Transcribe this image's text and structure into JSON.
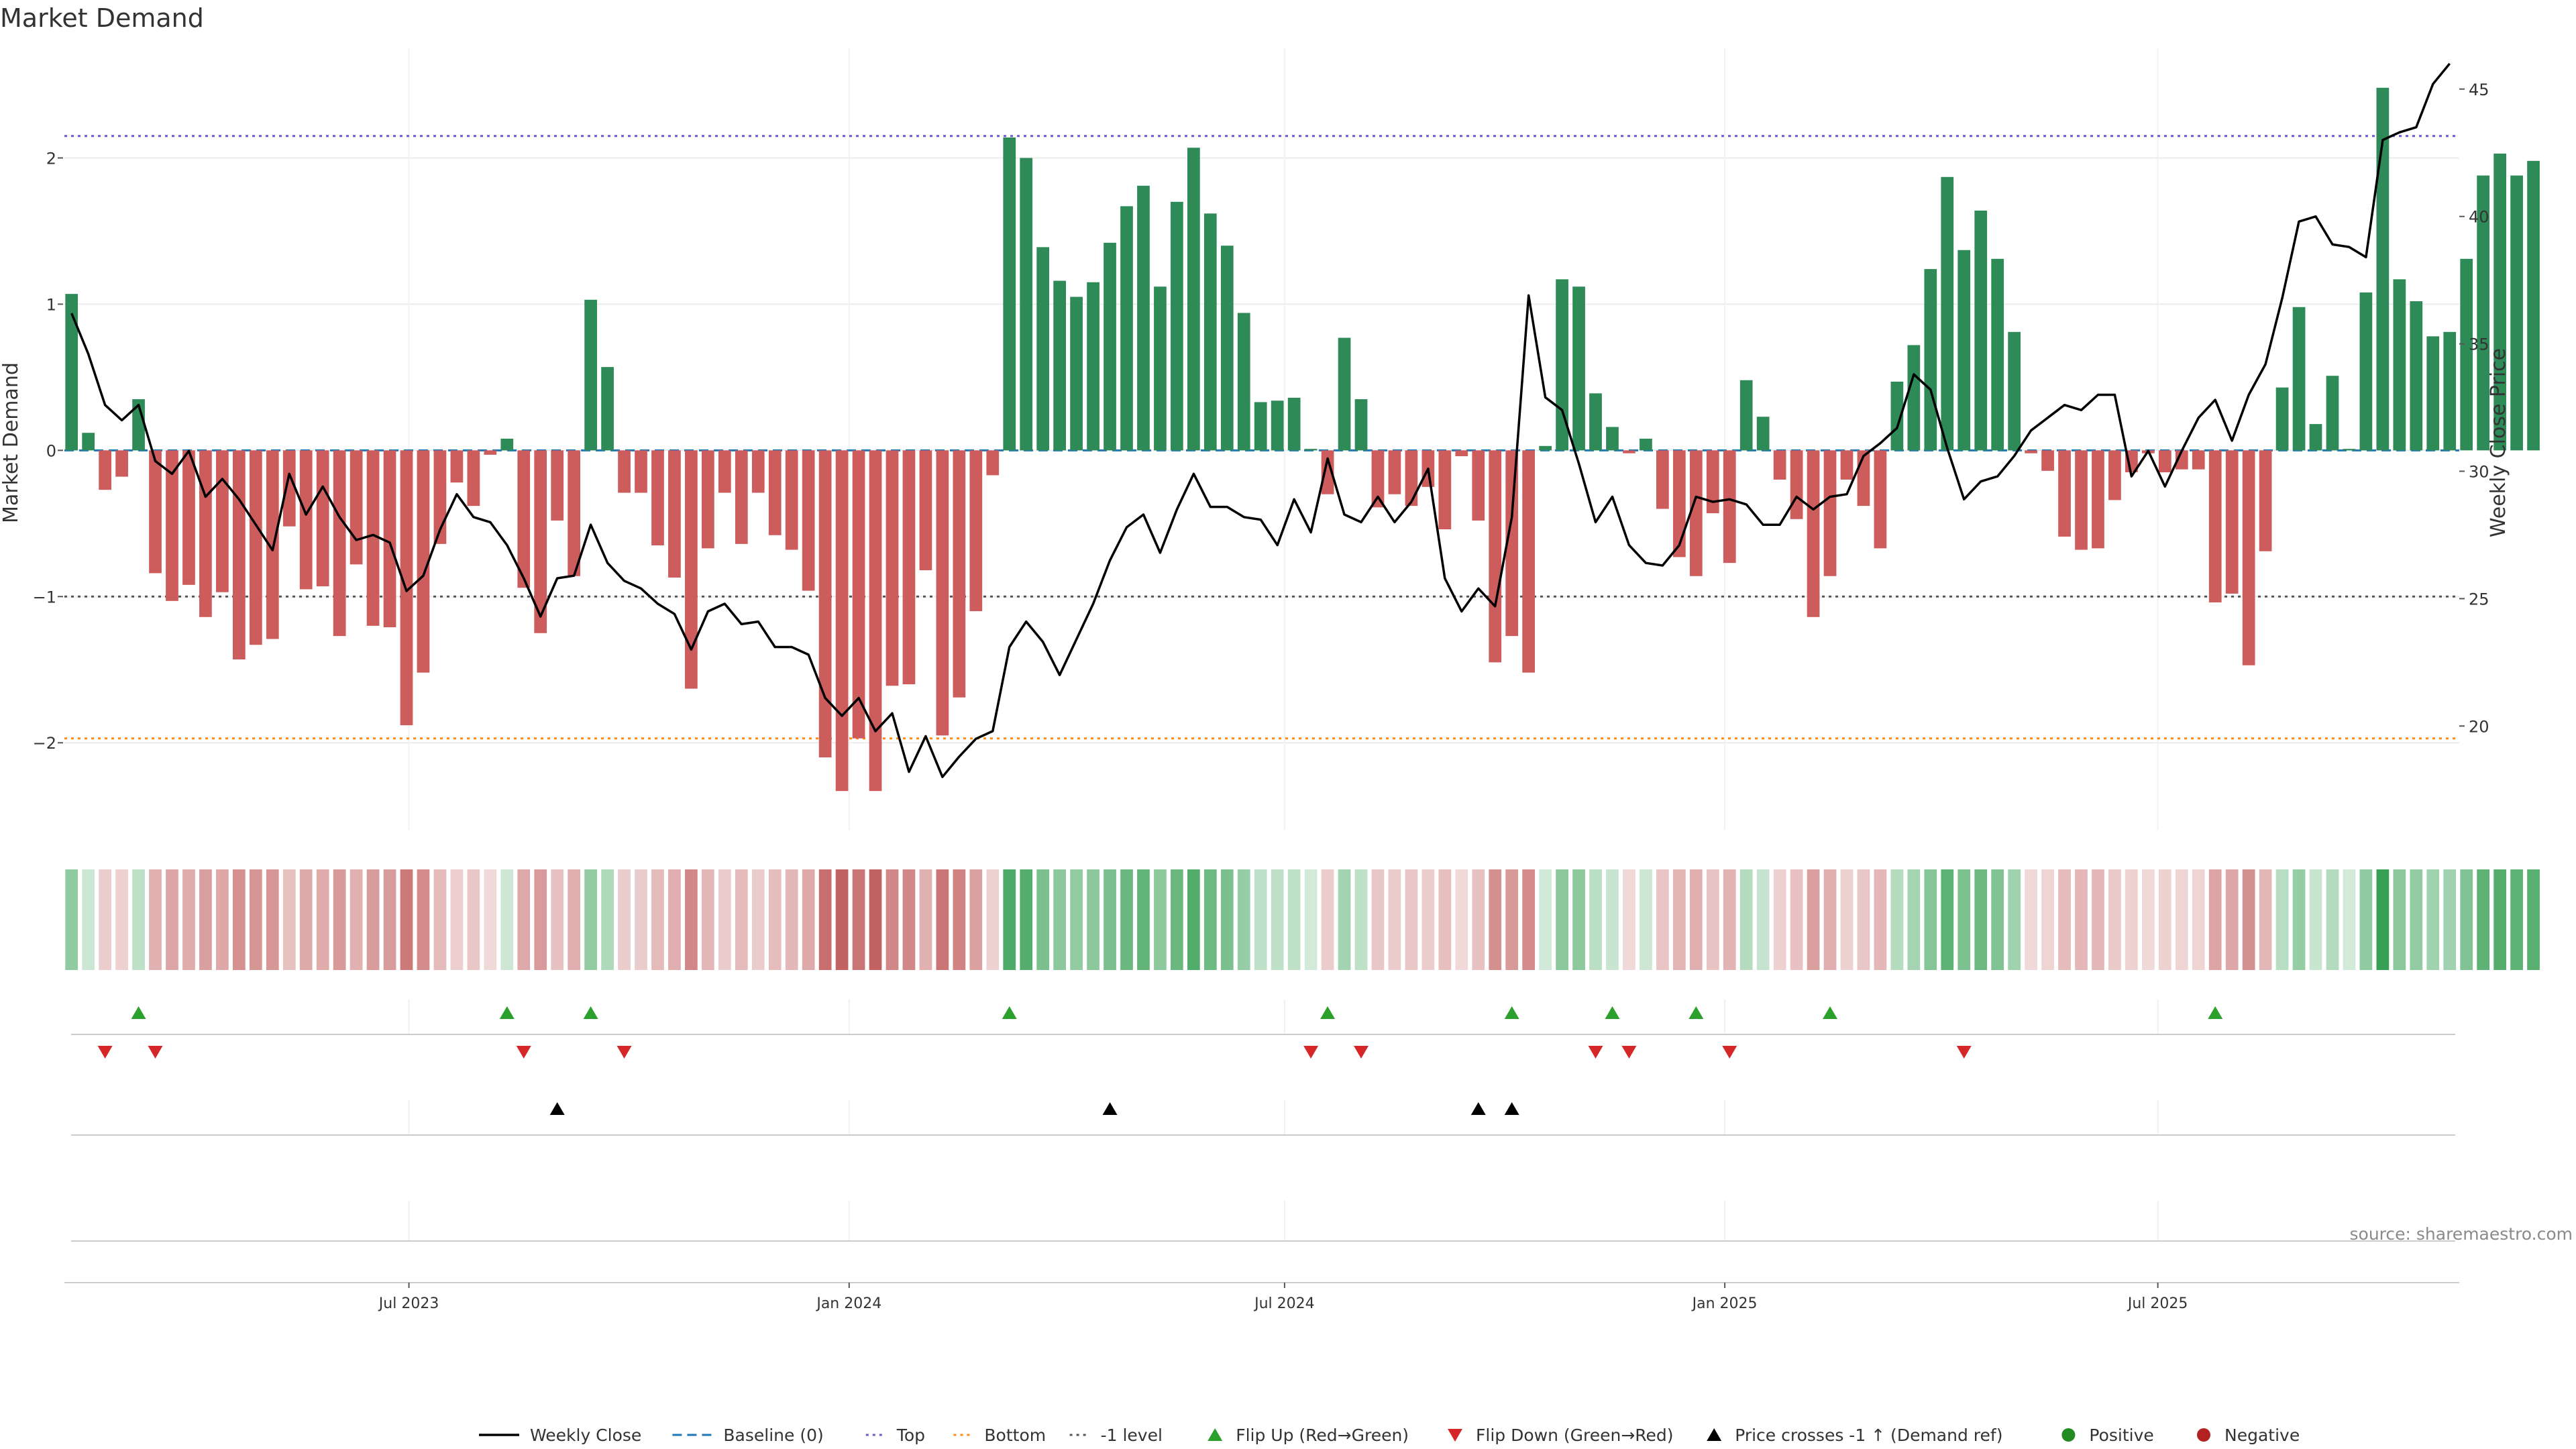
{
  "chart_data": {
    "type": "bar",
    "title": "Market Demand",
    "ylabel": "Market Demand",
    "y2label": "Weekly Close Price",
    "ylim": [
      -2.6,
      2.75
    ],
    "y2lim": [
      15.9,
      46.6
    ],
    "yticks": [
      {
        "v": 2,
        "t": "2"
      },
      {
        "v": 1,
        "t": "1"
      },
      {
        "v": 0,
        "t": "0"
      },
      {
        "v": -1,
        "t": "−1"
      },
      {
        "v": -2,
        "t": "−2"
      }
    ],
    "y2ticks": [
      {
        "v": 45,
        "t": "45"
      },
      {
        "v": 40,
        "t": "40"
      },
      {
        "v": 35,
        "t": "35"
      },
      {
        "v": 30,
        "t": "30"
      },
      {
        "v": 25,
        "t": "25"
      },
      {
        "v": 20,
        "t": "20"
      }
    ],
    "x_start": "2023-02-10",
    "x_step_days": 7,
    "xlim": [
      "2023-02-07",
      "2025-11-04"
    ],
    "xticks": [
      {
        "date": "2023-07-01",
        "label": "Jul 2023"
      },
      {
        "date": "2024-01-01",
        "label": "Jan 2024"
      },
      {
        "date": "2024-07-01",
        "label": "Jul 2024"
      },
      {
        "date": "2025-01-01",
        "label": "Jan 2025"
      },
      {
        "date": "2025-07-01",
        "label": "Jul 2025"
      }
    ],
    "reference_lines": [
      {
        "name": "Top",
        "value": 2.15,
        "color": "#6a5acd",
        "style": "dotted"
      },
      {
        "name": "Bottom",
        "value": -1.97,
        "color": "#ff8c1a",
        "style": "dotted"
      },
      {
        "name": "-1 level",
        "value": -1.0,
        "color": "#555555",
        "style": "dotted"
      },
      {
        "name": "Baseline (0)",
        "value": 0,
        "color": "#1f77b4",
        "style": "dashed"
      }
    ],
    "demand": [
      1.07,
      0.12,
      -0.27,
      -0.18,
      0.35,
      -0.84,
      -1.03,
      -0.92,
      -1.14,
      -0.97,
      -1.43,
      -1.33,
      -1.29,
      -0.52,
      -0.95,
      -0.93,
      -1.27,
      -0.78,
      -1.2,
      -1.21,
      -1.88,
      -1.52,
      -0.64,
      -0.22,
      -0.38,
      -0.03,
      0.08,
      -0.94,
      -1.25,
      -0.48,
      -0.86,
      1.03,
      0.57,
      -0.29,
      -0.29,
      -0.65,
      -0.87,
      -1.63,
      -0.67,
      -0.29,
      -0.64,
      -0.29,
      -0.58,
      -0.68,
      -0.96,
      -2.1,
      -2.33,
      -1.97,
      -2.33,
      -1.61,
      -1.6,
      -0.82,
      -1.95,
      -1.69,
      -1.1,
      -0.17,
      2.14,
      2.0,
      1.39,
      1.16,
      1.05,
      1.15,
      1.42,
      1.67,
      1.81,
      1.12,
      1.7,
      2.07,
      1.62,
      1.4,
      0.94,
      0.33,
      0.34,
      0.36,
      0.01,
      -0.3,
      0.77,
      0.35,
      -0.39,
      -0.3,
      -0.38,
      -0.25,
      -0.54,
      -0.04,
      -0.48,
      -1.45,
      -1.27,
      -1.52,
      0.03,
      1.17,
      1.12,
      0.39,
      0.16,
      -0.02,
      0.08,
      -0.4,
      -0.73,
      -0.86,
      -0.43,
      -0.77,
      0.48,
      0.23,
      -0.2,
      -0.47,
      -1.14,
      -0.86,
      -0.2,
      -0.38,
      -0.67,
      0.47,
      0.72,
      1.24,
      1.87,
      1.37,
      1.64,
      1.31,
      0.81,
      -0.02,
      -0.14,
      -0.59,
      -0.68,
      -0.67,
      -0.34,
      -0.15,
      -0.02,
      -0.15,
      -0.13,
      -0.13,
      -1.04,
      -0.98,
      -1.47,
      -0.69,
      0.43,
      0.98,
      0.18,
      0.51,
      0.01,
      1.08,
      2.48,
      1.17,
      1.02,
      0.78,
      0.81,
      1.31,
      1.88,
      2.03,
      1.88,
      1.98
    ],
    "weekly_close": [
      36.2,
      34.6,
      32.6,
      32.0,
      32.6,
      30.4,
      29.9,
      30.8,
      29.0,
      29.7,
      28.9,
      27.9,
      26.9,
      29.9,
      28.3,
      29.4,
      28.2,
      27.3,
      27.5,
      27.2,
      25.3,
      25.9,
      27.7,
      29.1,
      28.2,
      28.0,
      27.1,
      25.8,
      24.3,
      25.8,
      25.9,
      27.9,
      26.4,
      25.7,
      25.4,
      24.8,
      24.4,
      23.0,
      24.5,
      24.8,
      24.0,
      24.1,
      23.1,
      23.1,
      22.8,
      21.1,
      20.4,
      21.1,
      19.8,
      20.5,
      18.2,
      19.6,
      18.0,
      18.8,
      19.5,
      19.8,
      23.1,
      24.1,
      23.3,
      22.0,
      23.4,
      24.8,
      26.5,
      27.8,
      28.3,
      26.8,
      28.5,
      29.9,
      28.6,
      28.6,
      28.2,
      28.1,
      27.1,
      28.9,
      27.6,
      30.5,
      28.3,
      28.0,
      29.0,
      28.0,
      28.8,
      30.1,
      25.8,
      24.5,
      25.4,
      24.7,
      28.2,
      36.9,
      32.9,
      32.4,
      30.3,
      28.0,
      29.0,
      27.1,
      26.4,
      26.3,
      27.1,
      29.0,
      28.8,
      28.9,
      28.7,
      27.9,
      27.9,
      29.0,
      28.5,
      29.0,
      29.1,
      30.6,
      31.1,
      31.7,
      33.8,
      33.2,
      30.9,
      28.9,
      29.6,
      29.8,
      30.6,
      31.6,
      32.1,
      32.6,
      32.4,
      33.0,
      33.0,
      29.8,
      30.8,
      29.4,
      30.8,
      32.1,
      32.8,
      31.2,
      33.0,
      34.2,
      36.8,
      39.8,
      40.0,
      38.9,
      38.8,
      38.4,
      43.0,
      43.3,
      43.5,
      45.2,
      46.0
    ],
    "flip_up_indices": [
      4,
      26,
      31,
      56,
      75,
      86,
      92,
      97,
      105,
      128
    ],
    "flip_down_indices": [
      2,
      5,
      27,
      33,
      74,
      77,
      91,
      93,
      99,
      113
    ],
    "price_cross_indices": [
      29,
      62,
      84,
      86
    ],
    "colors": {
      "positive": "#2e8b57",
      "negative": "#cd5c5c",
      "line": "#000000",
      "flip_up": "#2ca02c",
      "flip_down": "#d62728",
      "cross": "#000000",
      "heat_pos": "#38a055",
      "heat_neg": "#c05a5a"
    },
    "legend": [
      {
        "label": "Weekly Close",
        "kind": "line"
      },
      {
        "label": "Baseline (0)",
        "kind": "dashed"
      },
      {
        "label": "Top",
        "kind": "dotted-top"
      },
      {
        "label": "Bottom",
        "kind": "dotted-bottom"
      },
      {
        "label": "-1 level",
        "kind": "dotted-minus"
      },
      {
        "label": "Flip Up (Red→Green)",
        "kind": "tri-up-green"
      },
      {
        "label": "Flip Down (Green→Red)",
        "kind": "tri-down-red"
      },
      {
        "label": "Price crosses -1 ↑ (Demand ref)",
        "kind": "tri-up-black"
      },
      {
        "label": "Positive",
        "kind": "dot-green"
      },
      {
        "label": "Negative",
        "kind": "dot-red"
      }
    ],
    "source": "source: sharemaestro.com"
  }
}
